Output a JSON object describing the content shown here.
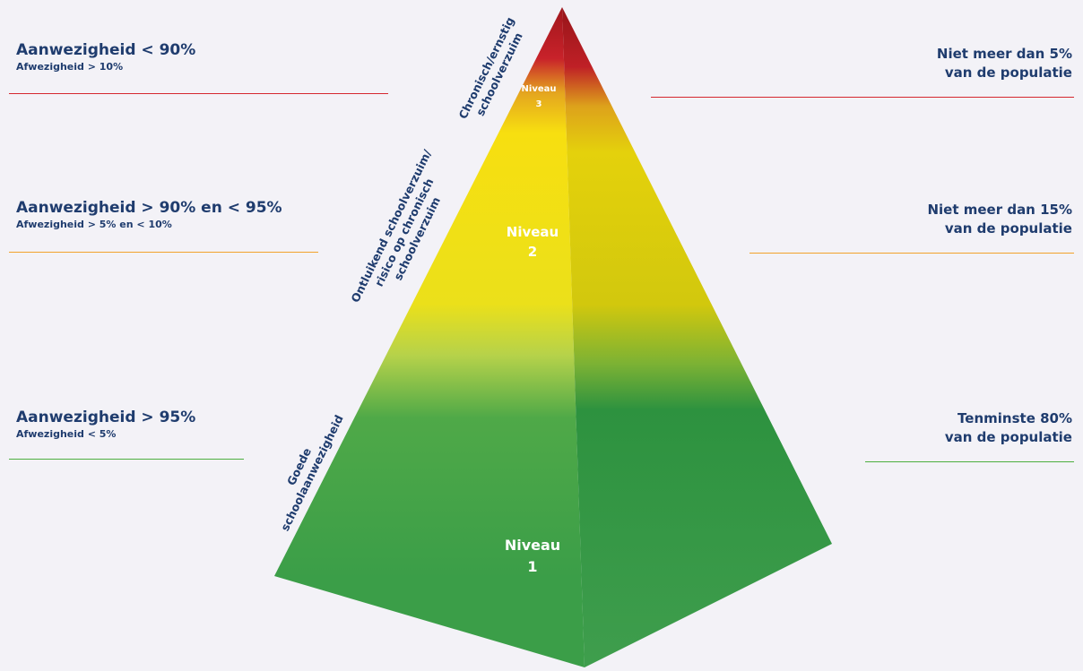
{
  "colors": {
    "text": "#1f3c6e",
    "red": "#d5272f",
    "orange": "#f2a22c",
    "green": "#4caf3f",
    "background": "#f3f2f7"
  },
  "levels": [
    {
      "niveau_word": "Niveau",
      "niveau_number": "3",
      "side_label_lines": [
        "Chronisch/ernstig",
        "schoolverzuim"
      ],
      "left_main": "Aanwezigheid < 90%",
      "left_sub": "Afwezigheid > 10%",
      "right_lines": [
        "Niet meer dan 5%",
        "van de populatie"
      ]
    },
    {
      "niveau_word": "Niveau",
      "niveau_number": "2",
      "side_label_lines": [
        "Ontluikend schoolverzuim/",
        "risico op chronisch",
        "schoolverzuim"
      ],
      "left_main": "Aanwezigheid > 90% en < 95%",
      "left_sub": "Afwezigheid > 5% en < 10%",
      "right_lines": [
        "Niet meer dan 15%",
        "van de populatie"
      ]
    },
    {
      "niveau_word": "Niveau",
      "niveau_number": "1",
      "side_label_lines": [
        "Goede",
        "schoolaanwezigheid"
      ],
      "left_main": "Aanwezigheid > 95%",
      "left_sub": "Afwezigheid < 5%",
      "right_lines": [
        "Tenminste 80%",
        "van de populatie"
      ]
    }
  ]
}
